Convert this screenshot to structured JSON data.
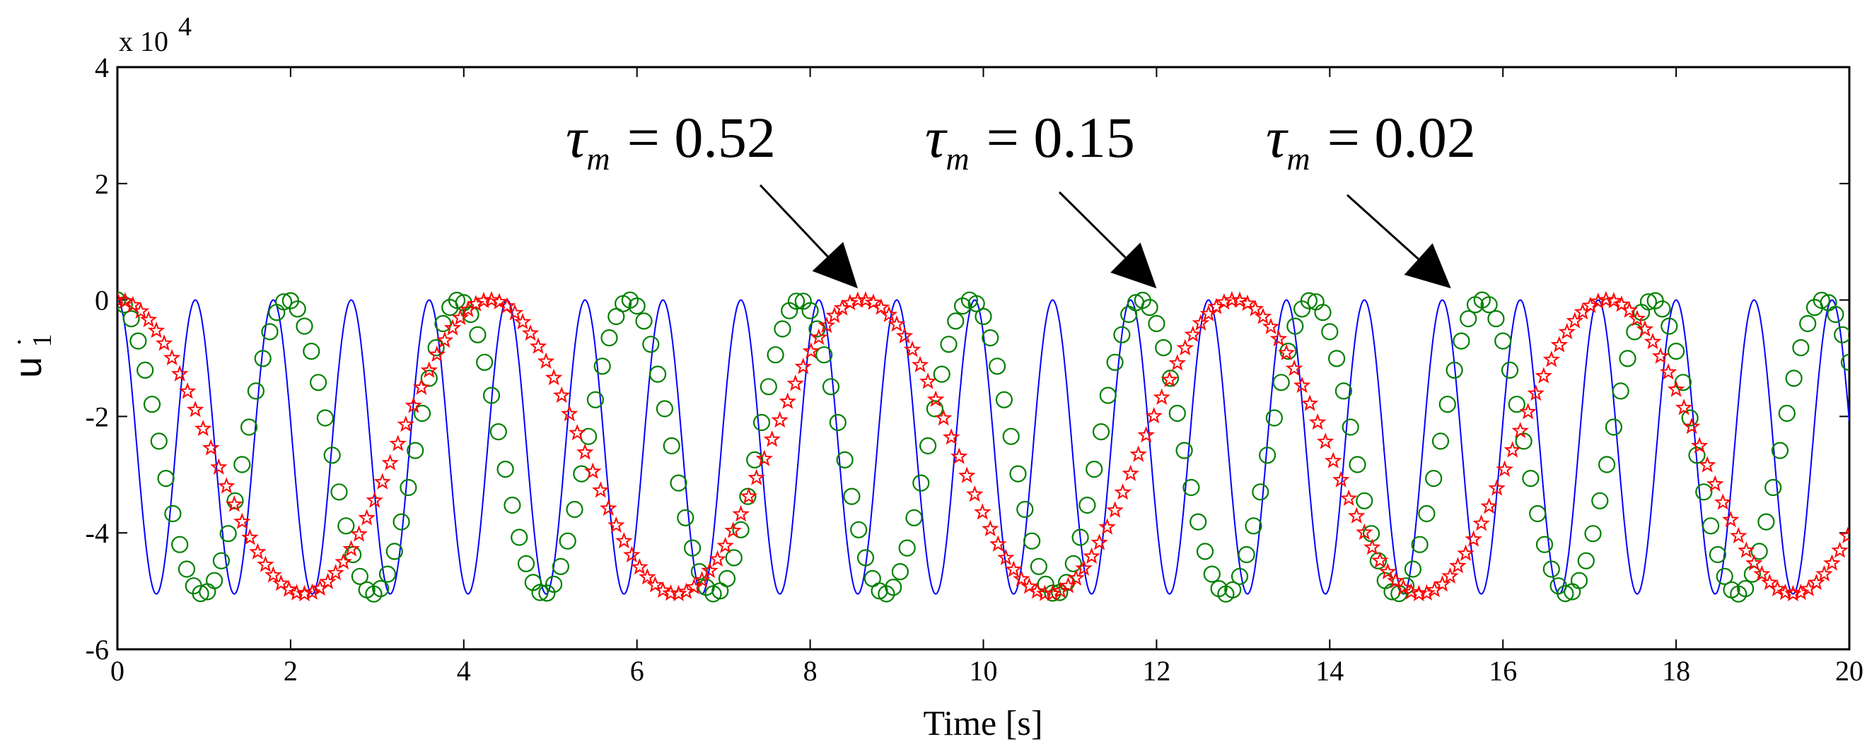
{
  "chart_data": {
    "type": "line",
    "title": "",
    "xlabel": "Time [s]",
    "ylabel": "u",
    "ylabel_subscript": "1",
    "ylabel_dot": "·",
    "y_exponent_label": "x 10",
    "y_exponent_power": "4",
    "xlim": [
      0,
      20
    ],
    "ylim": [
      -6,
      4
    ],
    "x_ticks": [
      0,
      2,
      4,
      6,
      8,
      10,
      12,
      14,
      16,
      18,
      20
    ],
    "y_ticks": [
      -6,
      -4,
      -2,
      0,
      2,
      4
    ],
    "x_tick_labels": [
      "0",
      "2",
      "4",
      "6",
      "8",
      "10",
      "12",
      "14",
      "16",
      "18",
      "20"
    ],
    "y_tick_labels": [
      "-6",
      "-4",
      "-2",
      "0",
      "2",
      "4"
    ],
    "grid": false,
    "series": [
      {
        "name": "tau_m = 0.02",
        "style": "line",
        "color": "#0000ff",
        "period": 0.9,
        "min": -5.05,
        "max": 0,
        "y_scale": 10000
      },
      {
        "name": "tau_m = 0.15",
        "style": "circle",
        "color": "#008000",
        "period": 1.97,
        "min": -5.05,
        "max": 0,
        "sample_step": 0.08,
        "y_scale": 10000
      },
      {
        "name": "tau_m = 0.52",
        "style": "star",
        "color": "#ff0000",
        "period": 4.3,
        "min": -5.05,
        "max": 0,
        "sample_step": 0.09,
        "y_scale": 10000
      }
    ],
    "annotations": [
      {
        "symbol": "τ",
        "subscript": "m",
        "text": "= 0.52",
        "arrow_to": [
          8.55,
          0.2
        ]
      },
      {
        "symbol": "τ",
        "subscript": "m",
        "text": "= 0.15",
        "arrow_to": [
          12.0,
          0.2
        ]
      },
      {
        "symbol": "τ",
        "subscript": "m",
        "text": "= 0.02",
        "arrow_to": [
          15.4,
          0.2
        ]
      }
    ]
  }
}
